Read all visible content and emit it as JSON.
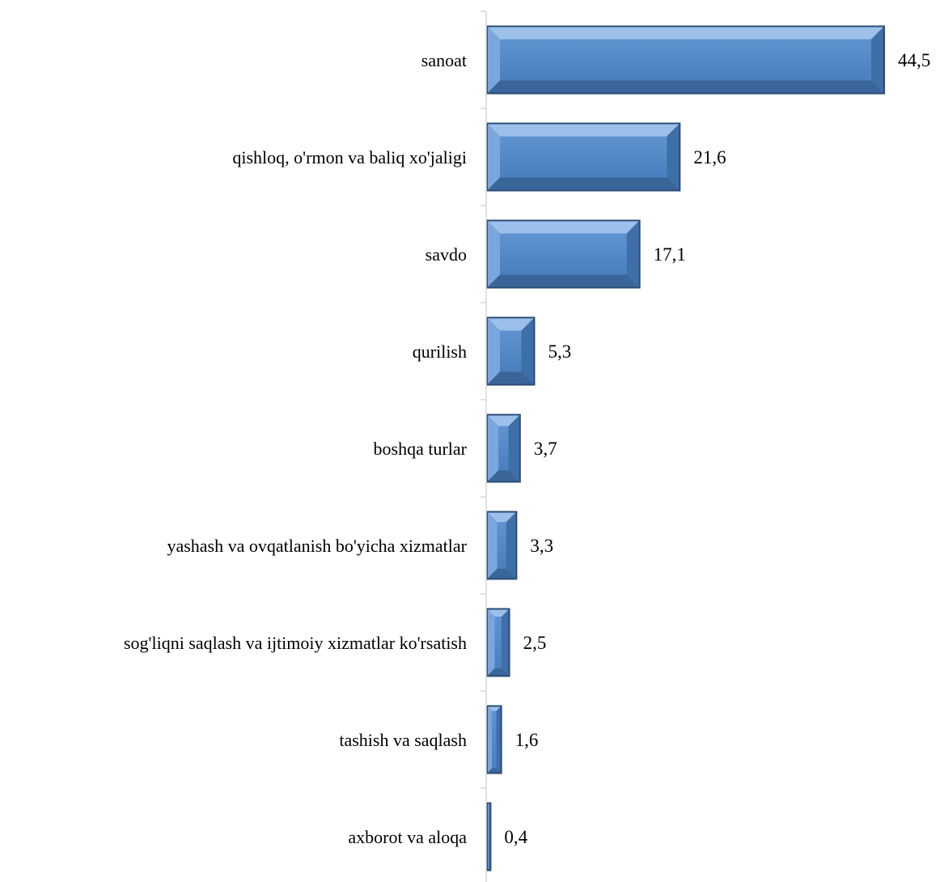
{
  "chart_data": {
    "type": "bar",
    "orientation": "horizontal",
    "categories": [
      "sanoat",
      "qishloq, o'rmon va baliq xo'jaligi",
      "savdo",
      "qurilish",
      "boshqa turlar",
      "yashash va ovqatlanish bo'yicha xizmatlar",
      "sog'liqni saqlash va ijtimoiy xizmatlar ko'rsatish",
      "tashish va saqlash",
      "axborot va aloqa"
    ],
    "values": [
      44.5,
      21.6,
      17.1,
      5.3,
      3.7,
      3.3,
      2.5,
      1.6,
      0.4
    ],
    "value_labels": [
      "44,5",
      "21,6",
      "17,1",
      "5,3",
      "3,7",
      "3,3",
      "2,5",
      "1,6",
      "0,4"
    ],
    "bar_color": "#4F81BD",
    "title": "",
    "xlabel": "",
    "ylabel": "",
    "xlim": [
      0,
      45
    ],
    "grid": false,
    "legend": "none"
  }
}
